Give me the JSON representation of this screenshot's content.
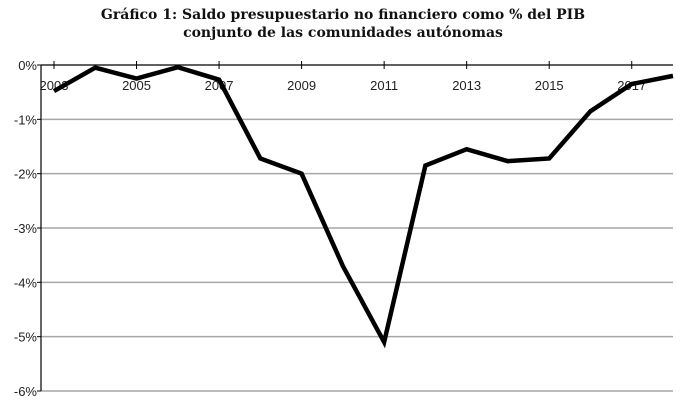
{
  "chart_data": {
    "type": "line",
    "title_line1": "Gráfico 1: Saldo presupuestario no financiero como % del PIB",
    "title_line2": "conjunto de las comunidades autónomas",
    "xlabel": "",
    "ylabel": "",
    "x": [
      2003,
      2004,
      2005,
      2006,
      2007,
      2008,
      2009,
      2010,
      2011,
      2012,
      2013,
      2014,
      2015,
      2016,
      2017,
      2018
    ],
    "series": [
      {
        "name": "Saldo presupuestario no financiero (% PIB)",
        "values": [
          -0.48,
          -0.05,
          -0.25,
          -0.04,
          -0.27,
          -1.72,
          -2.0,
          -3.7,
          -5.1,
          -1.85,
          -1.55,
          -1.77,
          -1.72,
          -0.85,
          -0.35,
          -0.2
        ]
      }
    ],
    "ylim": [
      -6,
      0
    ],
    "xlim": [
      2003,
      2018
    ],
    "yticks": [
      0,
      -1,
      -2,
      -3,
      -4,
      -5,
      -6
    ],
    "ytick_labels": [
      "0%",
      "-1%",
      "-2%",
      "-3%",
      "-4%",
      "-5%",
      "-6%"
    ],
    "xticks": [
      2003,
      2005,
      2007,
      2009,
      2011,
      2013,
      2015,
      2017
    ],
    "xtick_labels": [
      "2003",
      "2005",
      "2007",
      "2009",
      "2011",
      "2013",
      "2015",
      "2017"
    ],
    "grid": true,
    "legend": "none",
    "line_color": "#000000",
    "grid_color": "#a6a6a6"
  }
}
